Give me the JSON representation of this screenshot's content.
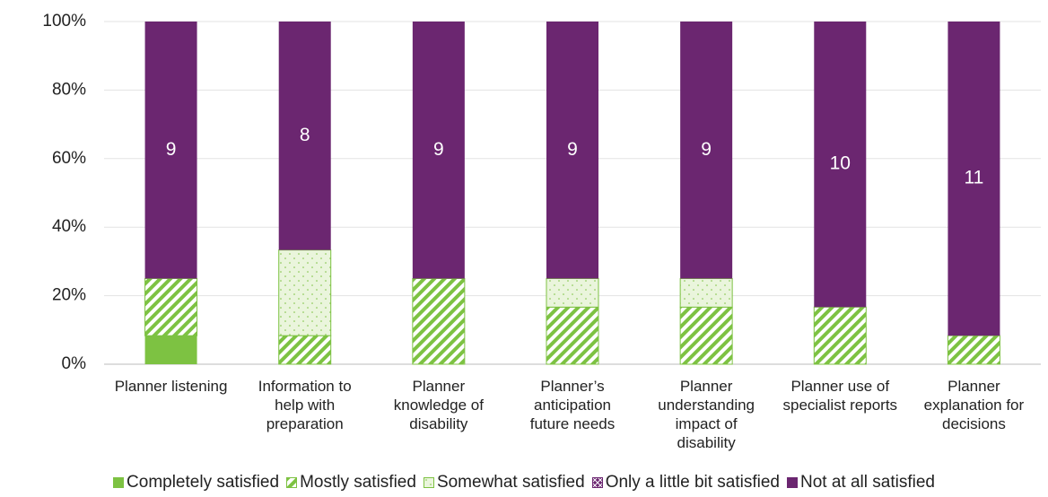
{
  "chart_data": {
    "type": "stacked_percent_bar",
    "categories": [
      "Planner listening",
      "Information to help with preparation",
      "Planner knowledge of disability",
      "Planner’s anticipation future needs",
      "Planner understanding impact of disability",
      "Planner use of specialist reports",
      "Planner explanation for decisions"
    ],
    "series": [
      {
        "name": "Completely satisfied",
        "color": "#7dc242",
        "pattern": "solid",
        "values": [
          1,
          0,
          0,
          0,
          0,
          0,
          0
        ]
      },
      {
        "name": "Mostly satisfied",
        "color": "#7dc242",
        "pattern": "stripes",
        "values": [
          2,
          1,
          3,
          2,
          2,
          2,
          1
        ]
      },
      {
        "name": "Somewhat satisfied",
        "color": "#7dc242",
        "pattern": "dots",
        "values": [
          0,
          3,
          0,
          1,
          1,
          0,
          0
        ]
      },
      {
        "name": "Only a little bit satisfied",
        "color": "#6b2670",
        "pattern": "cross",
        "values": [
          0,
          0,
          0,
          0,
          0,
          0,
          0
        ]
      },
      {
        "name": "Not at all satisfied",
        "color": "#6b2670",
        "pattern": "solid",
        "values": [
          9,
          8,
          9,
          9,
          9,
          10,
          11
        ],
        "show_labels": true
      }
    ],
    "ylim": [
      0,
      100
    ],
    "yticks": [
      {
        "value": 0,
        "label": "0%"
      },
      {
        "value": 20,
        "label": "20%"
      },
      {
        "value": 40,
        "label": "40%"
      },
      {
        "value": 60,
        "label": "60%"
      },
      {
        "value": 80,
        "label": "80%"
      },
      {
        "value": 100,
        "label": "100%"
      }
    ],
    "grid": true,
    "legend": "bottom"
  }
}
